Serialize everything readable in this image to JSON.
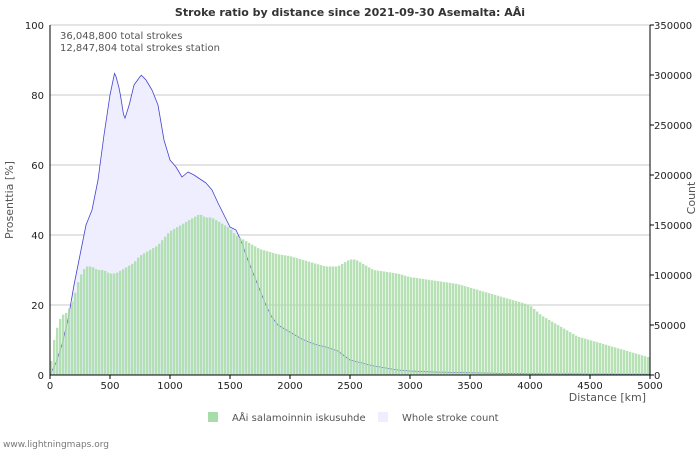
{
  "chart_data": {
    "type": "bar",
    "title": "Stroke ratio by distance since 2021-09-30 Asemalta: AÅi",
    "xlabel": "Distance   [km]",
    "ylabel": "Prosenttia   [%]",
    "y2label": "Count",
    "xlim": [
      0,
      5000
    ],
    "ylim": [
      0,
      100
    ],
    "y2lim": [
      0,
      350000
    ],
    "x_ticks": [
      "0",
      "500",
      "1000",
      "1500",
      "2000",
      "2500",
      "3000",
      "3500",
      "4000",
      "4500",
      "5000"
    ],
    "y_ticks": [
      "0",
      "20",
      "40",
      "60",
      "80",
      "100"
    ],
    "y2_ticks": [
      "0",
      "50000",
      "100000",
      "150000",
      "200000",
      "250000",
      "300000",
      "350000"
    ],
    "annotations": [
      "36,048,800 total strokes",
      "12,847,804 total strokes station"
    ],
    "legend": [
      "AÅi salamoinnin iskusuhde",
      "Whole stroke count"
    ],
    "colors": {
      "ratio": "#a8dca8",
      "count_fill": "#eeeeff",
      "count_line": "#4444cc",
      "grid": "#c8c8c8"
    },
    "series": [
      {
        "name": "AÅi salamoinnin iskusuhde",
        "kind": "bar",
        "axis": "left",
        "points": [
          [
            0,
            0
          ],
          [
            25,
            8
          ],
          [
            50,
            12
          ],
          [
            75,
            15
          ],
          [
            100,
            17
          ],
          [
            150,
            18
          ],
          [
            200,
            22
          ],
          [
            250,
            28
          ],
          [
            300,
            31
          ],
          [
            350,
            31
          ],
          [
            400,
            30
          ],
          [
            450,
            30
          ],
          [
            500,
            29
          ],
          [
            550,
            29
          ],
          [
            600,
            30
          ],
          [
            650,
            31
          ],
          [
            700,
            32
          ],
          [
            750,
            34
          ],
          [
            800,
            35
          ],
          [
            850,
            36
          ],
          [
            900,
            37
          ],
          [
            950,
            39
          ],
          [
            1000,
            41
          ],
          [
            1050,
            42
          ],
          [
            1100,
            43
          ],
          [
            1150,
            44
          ],
          [
            1200,
            45
          ],
          [
            1250,
            46
          ],
          [
            1300,
            45
          ],
          [
            1350,
            45
          ],
          [
            1400,
            44
          ],
          [
            1450,
            43
          ],
          [
            1500,
            42
          ],
          [
            1550,
            40
          ],
          [
            1600,
            39
          ],
          [
            1650,
            38
          ],
          [
            1700,
            37
          ],
          [
            1750,
            36
          ],
          [
            1800,
            35.5
          ],
          [
            1900,
            34.5
          ],
          [
            2000,
            34
          ],
          [
            2100,
            33
          ],
          [
            2200,
            32
          ],
          [
            2300,
            31
          ],
          [
            2400,
            31
          ],
          [
            2500,
            33
          ],
          [
            2550,
            33
          ],
          [
            2600,
            32
          ],
          [
            2700,
            30
          ],
          [
            2800,
            29.5
          ],
          [
            2900,
            29
          ],
          [
            3000,
            28
          ],
          [
            3100,
            27.5
          ],
          [
            3200,
            27
          ],
          [
            3300,
            26.5
          ],
          [
            3400,
            26
          ],
          [
            3500,
            25
          ],
          [
            3600,
            24
          ],
          [
            3700,
            23
          ],
          [
            3800,
            22
          ],
          [
            3900,
            21
          ],
          [
            4000,
            20
          ],
          [
            4100,
            17
          ],
          [
            4200,
            15
          ],
          [
            4300,
            13
          ],
          [
            4400,
            11
          ],
          [
            4500,
            10
          ],
          [
            4600,
            9
          ],
          [
            4700,
            8
          ],
          [
            4800,
            7
          ],
          [
            4900,
            6
          ],
          [
            5000,
            5
          ]
        ]
      },
      {
        "name": "Whole stroke count",
        "kind": "area",
        "axis": "right",
        "points": [
          [
            0,
            0
          ],
          [
            50,
            12000
          ],
          [
            100,
            30000
          ],
          [
            150,
            55000
          ],
          [
            200,
            90000
          ],
          [
            250,
            120000
          ],
          [
            300,
            150000
          ],
          [
            350,
            165000
          ],
          [
            400,
            195000
          ],
          [
            450,
            240000
          ],
          [
            500,
            280000
          ],
          [
            540,
            303000
          ],
          [
            580,
            285000
          ],
          [
            620,
            255000
          ],
          [
            660,
            270000
          ],
          [
            700,
            290000
          ],
          [
            760,
            300000
          ],
          [
            800,
            295000
          ],
          [
            850,
            285000
          ],
          [
            900,
            270000
          ],
          [
            950,
            235000
          ],
          [
            1000,
            215000
          ],
          [
            1050,
            208000
          ],
          [
            1100,
            198000
          ],
          [
            1150,
            203000
          ],
          [
            1200,
            200000
          ],
          [
            1250,
            196000
          ],
          [
            1300,
            192000
          ],
          [
            1350,
            185000
          ],
          [
            1400,
            172000
          ],
          [
            1450,
            160000
          ],
          [
            1500,
            148000
          ],
          [
            1550,
            145000
          ],
          [
            1600,
            132000
          ],
          [
            1650,
            115000
          ],
          [
            1700,
            100000
          ],
          [
            1750,
            85000
          ],
          [
            1800,
            70000
          ],
          [
            1850,
            58000
          ],
          [
            1900,
            50000
          ],
          [
            2000,
            43000
          ],
          [
            2100,
            36000
          ],
          [
            2200,
            31000
          ],
          [
            2300,
            28000
          ],
          [
            2400,
            24000
          ],
          [
            2500,
            15000
          ],
          [
            2600,
            12000
          ],
          [
            2700,
            9000
          ],
          [
            2800,
            7000
          ],
          [
            2900,
            5000
          ],
          [
            3000,
            4000
          ],
          [
            3200,
            3000
          ],
          [
            3400,
            2500
          ],
          [
            3600,
            2000
          ],
          [
            3800,
            1500
          ],
          [
            4000,
            1200
          ],
          [
            4500,
            1000
          ],
          [
            5000,
            800
          ]
        ]
      }
    ]
  },
  "credit": "www.lightningmaps.org"
}
